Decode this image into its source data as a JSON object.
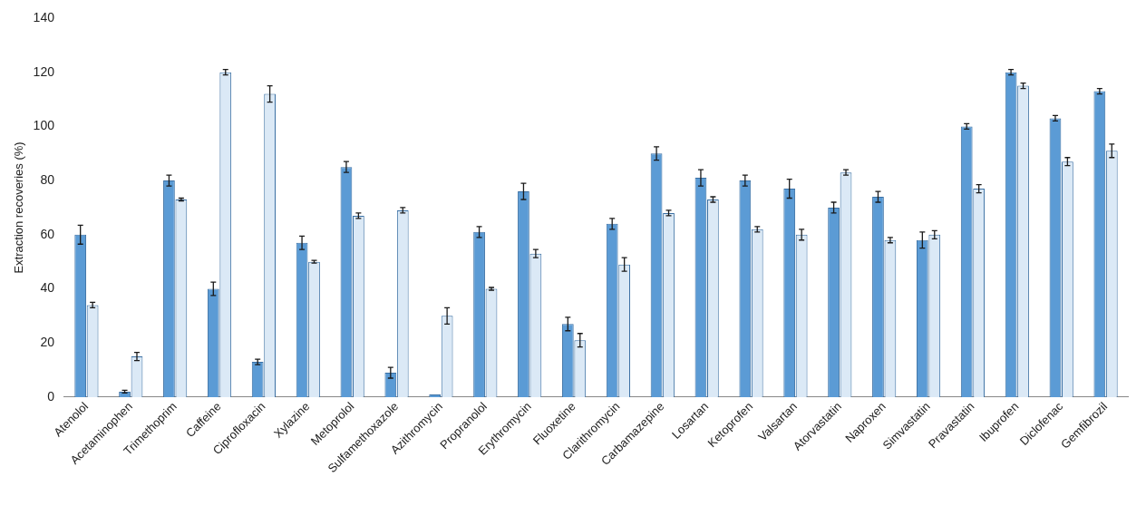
{
  "chart_data": {
    "type": "bar",
    "ylabel": "Extraction recoveries (%)",
    "categories": [
      "Atenolol",
      "Acetaminophen",
      "Trimethoprim",
      "Caffeine",
      "Ciprofloxacin",
      "Xylazine",
      "Metoprolol",
      "Sulfamethoxazole",
      "Azithromycin",
      "Propranolol",
      "Erythromycin",
      "Fluoxetine",
      "Clarithromycin",
      "Carbamazepine",
      "Losartan",
      "Ketoprofen",
      "Valsartan",
      "Atorvastatin",
      "Naproxen",
      "Simvastatin",
      "Pravastatin",
      "Ibuprofen",
      "Diclofenac",
      "Gemfibrozil"
    ],
    "series": [
      {
        "color": "#5b9bd5",
        "values": [
          60,
          2,
          80,
          40,
          13,
          57,
          85,
          9,
          1,
          61,
          76,
          27,
          64,
          90,
          81,
          80,
          77,
          70,
          74,
          58,
          100,
          120,
          103,
          113
        ],
        "errors": [
          3.5,
          0.5,
          2,
          2.5,
          1,
          2.5,
          2,
          2,
          null,
          2,
          3,
          2.5,
          2,
          2.5,
          3,
          2,
          3.5,
          2,
          2,
          3,
          1,
          1,
          1,
          1
        ]
      },
      {
        "color": "#dbe9f6",
        "values": [
          34,
          15,
          73,
          120,
          112,
          50,
          67,
          69,
          30,
          40,
          53,
          21,
          49,
          68,
          73,
          62,
          60,
          83,
          58,
          60,
          77,
          115,
          87,
          91
        ],
        "errors": [
          1,
          1.5,
          0.5,
          1,
          3,
          0.5,
          1,
          1,
          3,
          0.5,
          1.5,
          2.5,
          2.5,
          1,
          1,
          1,
          2,
          1,
          1,
          1.5,
          1.5,
          1,
          1.5,
          2.5
        ]
      }
    ],
    "ylim": [
      0,
      140
    ],
    "yticks": [
      0,
      20,
      40,
      60,
      80,
      100,
      120,
      140
    ],
    "grid": false,
    "legend": false
  }
}
